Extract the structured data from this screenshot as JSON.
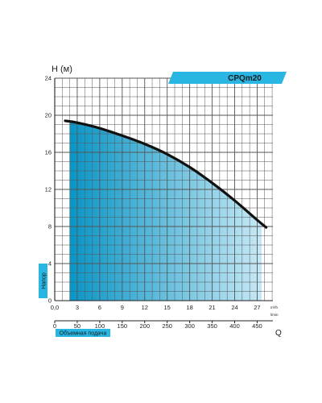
{
  "chart_data": {
    "type": "area",
    "title": "CPQm20",
    "ylabel": "H (м)",
    "ylabel_side": "Напор",
    "xlabel": "Q",
    "xlabel_side": "Объемная подача",
    "x_unit_top": "m³/h",
    "x_unit_bottom": "l/min",
    "ylim": [
      0,
      24
    ],
    "yticks": [
      "0",
      "4",
      "8",
      "12",
      "16",
      "20",
      "24"
    ],
    "xlim_m3h": [
      0,
      29.1
    ],
    "xticks_m3h": [
      "0,0",
      "3",
      "6",
      "9",
      "12",
      "15",
      "18",
      "21",
      "24",
      "27"
    ],
    "xticks_lmin": [
      "0",
      "50",
      "100",
      "150",
      "200",
      "250",
      "300",
      "350",
      "400",
      "450"
    ],
    "grid": true,
    "series": [
      {
        "x": [
          1.4,
          3,
          6,
          9,
          12,
          15,
          18,
          21,
          24,
          27,
          28.2
        ],
        "y": [
          19.4,
          19.2,
          18.6,
          17.8,
          16.9,
          15.8,
          14.4,
          12.7,
          10.8,
          8.7,
          7.9
        ],
        "fill_range": [
          2.0,
          27.6
        ]
      }
    ],
    "colors": {
      "curve": "#111111",
      "fill_start": "#0895c6",
      "fill_end": "#c6e8f5",
      "accent": "#29b6e3",
      "grid": "#555555",
      "axis": "#222222"
    }
  }
}
